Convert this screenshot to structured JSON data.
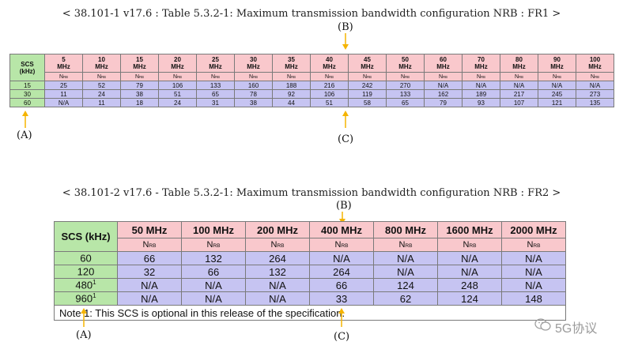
{
  "fr1": {
    "title": "< 38.101-1 v17.6 : Table 5.3.2-1: Maximum transmission bandwidth configuration NRB : FR1 >",
    "scs_header": [
      "SCS",
      "(kHz)"
    ],
    "bandwidths": [
      [
        "5",
        "MHz"
      ],
      [
        "10",
        "MHz"
      ],
      [
        "15",
        "MHz"
      ],
      [
        "20",
        "MHz"
      ],
      [
        "25",
        "MHz"
      ],
      [
        "30",
        "MHz"
      ],
      [
        "35",
        "MHz"
      ],
      [
        "40",
        "MHz"
      ],
      [
        "45",
        "MHz"
      ],
      [
        "50",
        "MHz"
      ],
      [
        "60",
        "MHz"
      ],
      [
        "70",
        "MHz"
      ],
      [
        "80",
        "MHz"
      ],
      [
        "90",
        "MHz"
      ],
      [
        "100",
        "MHz"
      ]
    ],
    "nrb_label": {
      "main": "N",
      "sub": "RB"
    },
    "rows": [
      {
        "scs": "15",
        "values": [
          "25",
          "52",
          "79",
          "106",
          "133",
          "160",
          "188",
          "216",
          "242",
          "270",
          "N/A",
          "N/A",
          "N/A",
          "N/A",
          "N/A"
        ]
      },
      {
        "scs": "30",
        "values": [
          "11",
          "24",
          "38",
          "51",
          "65",
          "78",
          "92",
          "106",
          "119",
          "133",
          "162",
          "189",
          "217",
          "245",
          "273"
        ]
      },
      {
        "scs": "60",
        "values": [
          "N/A",
          "11",
          "18",
          "24",
          "31",
          "38",
          "44",
          "51",
          "58",
          "65",
          "79",
          "93",
          "107",
          "121",
          "135"
        ]
      }
    ]
  },
  "fr2": {
    "title": "< 38.101-2 v17.6 - Table 5.3.2-1: Maximum transmission bandwidth configuration NRB : FR2 >",
    "scs_header": "SCS (kHz)",
    "bandwidths": [
      "50 MHz",
      "100 MHz",
      "200 MHz",
      "400 MHz",
      "800 MHz",
      "1600 MHz",
      "2000 MHz"
    ],
    "nrb_label": {
      "main": "N",
      "sub": "RB"
    },
    "rows": [
      {
        "scs": "60",
        "sup": "",
        "values": [
          "66",
          "132",
          "264",
          "N/A",
          "N/A",
          "N/A",
          "N/A"
        ]
      },
      {
        "scs": "120",
        "sup": "",
        "values": [
          "32",
          "66",
          "132",
          "264",
          "N/A",
          "N/A",
          "N/A"
        ]
      },
      {
        "scs": "480",
        "sup": "1",
        "values": [
          "N/A",
          "N/A",
          "N/A",
          "66",
          "124",
          "248",
          "N/A"
        ]
      },
      {
        "scs": "960",
        "sup": "1",
        "values": [
          "N/A",
          "N/A",
          "N/A",
          "33",
          "62",
          "124",
          "148"
        ]
      }
    ],
    "note": "Note 1: This SCS is optional in this release of the specification."
  },
  "labels": {
    "a": "(A)",
    "b": "(B)",
    "c": "(C)"
  },
  "colors": {
    "arrow": "#f5b400",
    "scs": "#b8e6a8",
    "header": "#f9c8cc",
    "data": "#c6c4f2"
  },
  "watermark": {
    "icon": "wechat-icon",
    "text": "5G协议"
  }
}
